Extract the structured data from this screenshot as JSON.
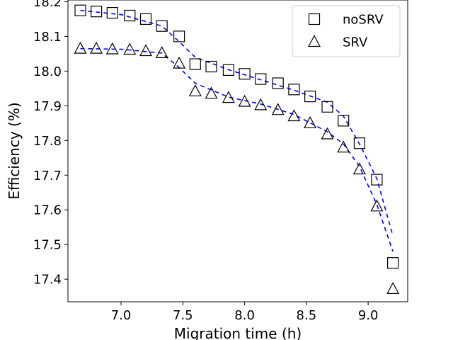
{
  "chart_data": {
    "type": "scatter",
    "title": "",
    "xlabel": "Migration time (h)",
    "ylabel": "Efficiency (%)",
    "xlim": [
      6.57,
      9.32
    ],
    "ylim": [
      17.335,
      18.205
    ],
    "xticks": [
      7.0,
      7.5,
      8.0,
      8.5,
      9.0
    ],
    "xtick_labels": [
      "7.0",
      "7.5",
      "8.0",
      "8.5",
      "9.0"
    ],
    "yticks": [
      17.4,
      17.5,
      17.6,
      17.7,
      17.8,
      17.9,
      18.0,
      18.1,
      18.2
    ],
    "ytick_labels": [
      "17.4",
      "17.5",
      "17.6",
      "17.7",
      "17.8",
      "17.9",
      "18.0",
      "18.1",
      "18.2"
    ],
    "grid": false,
    "legend_position": "top-right",
    "series": [
      {
        "name": "noSRV",
        "marker": "square",
        "color": "#000000",
        "x": [
          6.67,
          6.8,
          6.93,
          7.07,
          7.2,
          7.33,
          7.47,
          7.6,
          7.73,
          7.87,
          8.0,
          8.13,
          8.27,
          8.4,
          8.53,
          8.67,
          8.8,
          8.93,
          9.07,
          9.2
        ],
        "y": [
          18.175,
          18.172,
          18.168,
          18.16,
          18.15,
          18.13,
          18.1,
          18.02,
          18.013,
          18.003,
          17.992,
          17.977,
          17.965,
          17.947,
          17.927,
          17.897,
          17.857,
          17.792,
          17.687,
          17.447
        ]
      },
      {
        "name": "SRV",
        "marker": "triangle",
        "color": "#000000",
        "x": [
          6.67,
          6.8,
          6.93,
          7.07,
          7.2,
          7.33,
          7.47,
          7.6,
          7.73,
          7.87,
          8.0,
          8.13,
          8.27,
          8.4,
          8.53,
          8.67,
          8.8,
          8.93,
          9.07,
          9.2
        ],
        "y": [
          18.065,
          18.065,
          18.063,
          18.062,
          18.058,
          18.052,
          18.022,
          17.942,
          17.935,
          17.923,
          17.912,
          17.902,
          17.888,
          17.87,
          17.85,
          17.818,
          17.78,
          17.717,
          17.61,
          17.372
        ]
      }
    ],
    "fit_lines": [
      {
        "color": "#0000ff",
        "x": [
          6.67,
          7.0,
          7.33,
          7.47,
          7.6,
          7.87,
          8.13,
          8.4,
          8.67,
          8.8,
          8.93,
          9.07,
          9.2
        ],
        "y": [
          18.175,
          18.163,
          18.13,
          18.085,
          18.04,
          18.004,
          17.975,
          17.945,
          17.91,
          17.87,
          17.79,
          17.69,
          17.525
        ]
      },
      {
        "color": "#0000ff",
        "x": [
          6.67,
          7.0,
          7.33,
          7.47,
          7.6,
          7.87,
          8.13,
          8.4,
          8.67,
          8.8,
          8.93,
          9.07,
          9.2
        ],
        "y": [
          18.065,
          18.063,
          18.052,
          18.01,
          17.965,
          17.925,
          17.905,
          17.875,
          17.825,
          17.79,
          17.725,
          17.615,
          17.48
        ]
      }
    ]
  }
}
